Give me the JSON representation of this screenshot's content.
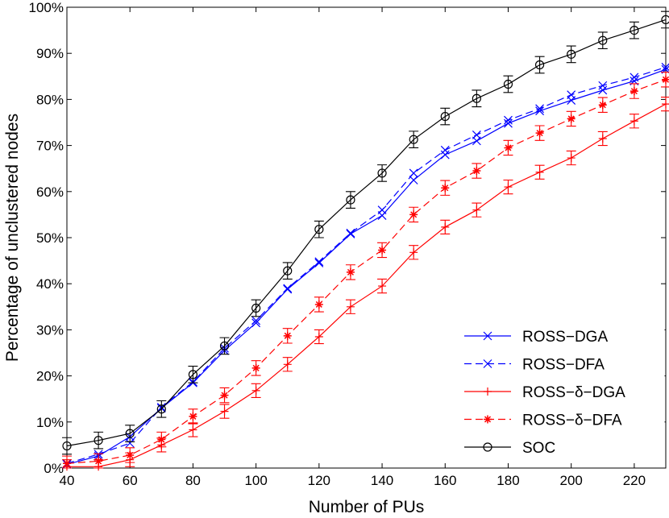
{
  "chart_data": {
    "type": "line",
    "xlabel": "Number of PUs",
    "ylabel": "Percentage of unclustered nodes",
    "xlim": [
      40,
      230
    ],
    "ylim": [
      0,
      100
    ],
    "x_ticks": [
      40,
      60,
      80,
      100,
      120,
      140,
      160,
      180,
      200,
      220
    ],
    "x_tick_labels": [
      "40",
      "60",
      "80",
      "100",
      "120",
      "140",
      "160",
      "180",
      "200",
      "220"
    ],
    "y_ticks": [
      0,
      10,
      20,
      30,
      40,
      50,
      60,
      70,
      80,
      90,
      100
    ],
    "y_tick_labels": [
      "0%",
      "10%",
      "20%",
      "30%",
      "40%",
      "50%",
      "60%",
      "70%",
      "80%",
      "90%",
      "100%"
    ],
    "grid": false,
    "legend_position": "bottom-right",
    "x": [
      40,
      50,
      60,
      70,
      80,
      90,
      100,
      110,
      120,
      130,
      140,
      150,
      160,
      170,
      180,
      190,
      200,
      210,
      220,
      230
    ],
    "series": [
      {
        "name": "ROSS−DGA",
        "color": "#0000ff",
        "line": "solid",
        "marker": "x",
        "values": [
          0.8,
          2.6,
          6.8,
          13.0,
          18.5,
          25.5,
          31.5,
          38.8,
          44.5,
          50.8,
          54.8,
          62.5,
          68.0,
          71.0,
          74.8,
          77.5,
          79.8,
          82.0,
          84.0,
          86.5
        ]
      },
      {
        "name": "ROSS−DFA",
        "color": "#0000ff",
        "line": "dashed",
        "marker": "x",
        "values": [
          1.0,
          3.0,
          5.4,
          13.2,
          18.7,
          26.0,
          32.0,
          39.0,
          44.8,
          51.0,
          56.0,
          64.0,
          69.0,
          72.3,
          75.5,
          78.0,
          81.0,
          83.0,
          84.8,
          87.0
        ]
      },
      {
        "name": "ROSS−δ−DGA",
        "color": "#ff0000",
        "line": "solid",
        "marker": "+",
        "error": 1.5,
        "values": [
          0.3,
          0.3,
          1.8,
          5.0,
          8.3,
          12.3,
          16.8,
          22.5,
          28.5,
          35.0,
          39.5,
          46.8,
          52.3,
          56.0,
          61.0,
          64.2,
          67.3,
          71.5,
          75.3,
          79.0
        ]
      },
      {
        "name": "ROSS−δ−DFA",
        "color": "#ff0000",
        "line": "dashed",
        "marker": "*",
        "error": 1.6,
        "values": [
          1.0,
          1.5,
          2.8,
          6.2,
          11.2,
          15.8,
          21.7,
          28.7,
          35.5,
          42.5,
          47.3,
          55.0,
          60.8,
          64.5,
          69.5,
          72.7,
          75.8,
          78.8,
          81.8,
          84.3
        ]
      },
      {
        "name": "SOC",
        "color": "#000000",
        "line": "solid",
        "marker": "o",
        "error": 1.8,
        "values": [
          4.8,
          6.0,
          7.5,
          12.8,
          20.3,
          26.5,
          34.7,
          42.8,
          51.8,
          58.2,
          64.0,
          71.3,
          76.3,
          80.2,
          83.3,
          87.5,
          89.8,
          92.8,
          95.0,
          97.3
        ]
      }
    ]
  }
}
